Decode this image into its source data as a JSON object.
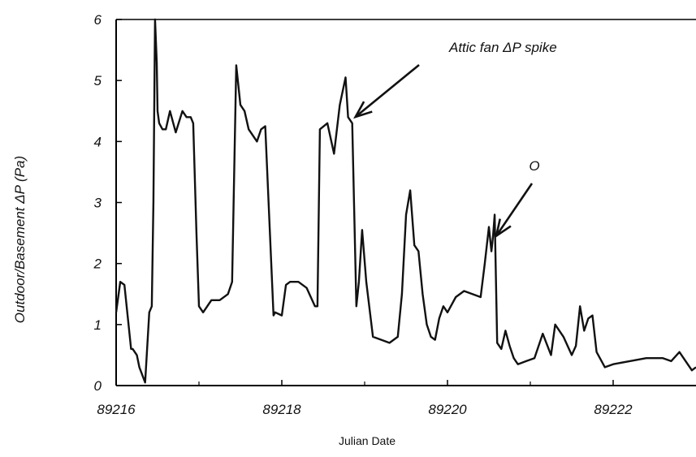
{
  "chart_data": {
    "type": "line",
    "xlabel": "Julian Date",
    "ylabel": "Outdoor/Basement ΔP (Pa)",
    "xlim": [
      89216,
      89223
    ],
    "ylim": [
      0,
      6
    ],
    "x_ticks": [
      89216,
      89218,
      89220,
      89222
    ],
    "y_ticks": [
      0,
      1,
      2,
      3,
      4,
      5,
      6
    ],
    "grid": false,
    "series": [
      {
        "x": [
          89216.0,
          89216.05,
          89216.1,
          89216.18,
          89216.2,
          89216.25,
          89216.28,
          89216.35,
          89216.4,
          89216.43,
          89216.45,
          89216.47,
          89216.49,
          89216.5,
          89216.52,
          89216.56,
          89216.6,
          89216.65,
          89216.72,
          89216.8,
          89216.85,
          89216.9,
          89216.93,
          89216.97,
          89217.0,
          89217.05,
          89217.15,
          89217.25,
          89217.35,
          89217.4,
          89217.45,
          89217.5,
          89217.55,
          89217.6,
          89217.7,
          89217.75,
          89217.8,
          89217.9,
          89217.92,
          89218.0,
          89218.05,
          89218.1,
          89218.2,
          89218.3,
          89218.4,
          89218.43,
          89218.46,
          89218.55,
          89218.63,
          89218.7,
          89218.77,
          89218.8,
          89218.85,
          89218.9,
          89218.93,
          89218.97,
          89219.02,
          89219.1,
          89219.2,
          89219.3,
          89219.4,
          89219.45,
          89219.5,
          89219.55,
          89219.6,
          89219.65,
          89219.7,
          89219.75,
          89219.8,
          89219.85,
          89219.9,
          89219.95,
          89220.0,
          89220.1,
          89220.2,
          89220.3,
          89220.4,
          89220.45,
          89220.5,
          89220.53,
          89220.55,
          89220.57,
          89220.6,
          89220.65,
          89220.7,
          89220.75,
          89220.8,
          89220.85,
          89220.95,
          89221.05,
          89221.15,
          89221.25,
          89221.3,
          89221.4,
          89221.5,
          89221.55,
          89221.6,
          89221.65,
          89221.7,
          89221.75,
          89221.8,
          89221.9,
          89222.0,
          89222.2,
          89222.4,
          89222.6,
          89222.7,
          89222.8,
          89222.9,
          89222.95,
          89223.0
        ],
        "y": [
          1.2,
          1.7,
          1.65,
          0.6,
          0.6,
          0.5,
          0.3,
          0.05,
          1.2,
          1.3,
          3.0,
          6.0,
          5.3,
          4.5,
          4.3,
          4.2,
          4.2,
          4.5,
          4.15,
          4.5,
          4.4,
          4.4,
          4.3,
          2.5,
          1.3,
          1.2,
          1.4,
          1.4,
          1.5,
          1.7,
          5.25,
          4.6,
          4.5,
          4.2,
          4.0,
          4.2,
          4.25,
          1.15,
          1.2,
          1.15,
          1.65,
          1.7,
          1.7,
          1.6,
          1.3,
          1.3,
          4.2,
          4.3,
          3.8,
          4.6,
          5.05,
          4.4,
          4.3,
          1.3,
          1.7,
          2.55,
          1.7,
          0.8,
          0.75,
          0.7,
          0.8,
          1.5,
          2.8,
          3.2,
          2.3,
          2.2,
          1.5,
          1.0,
          0.8,
          0.75,
          1.1,
          1.3,
          1.2,
          1.45,
          1.55,
          1.5,
          1.45,
          2.0,
          2.6,
          2.2,
          2.45,
          2.8,
          0.7,
          0.6,
          0.9,
          0.65,
          0.45,
          0.35,
          0.4,
          0.45,
          0.85,
          0.5,
          1.0,
          0.8,
          0.5,
          0.65,
          1.3,
          0.9,
          1.1,
          1.15,
          0.55,
          0.3,
          0.35,
          0.4,
          0.45,
          0.45,
          0.4,
          0.55,
          0.35,
          0.25,
          0.3
        ]
      }
    ],
    "annotations": [
      {
        "text": "Attic fan ΔP spike",
        "points_to": {
          "x": 89218.85,
          "y": 4.35
        }
      },
      {
        "text": "O",
        "points_to": {
          "x": 89220.55,
          "y": 2.4
        }
      }
    ]
  }
}
